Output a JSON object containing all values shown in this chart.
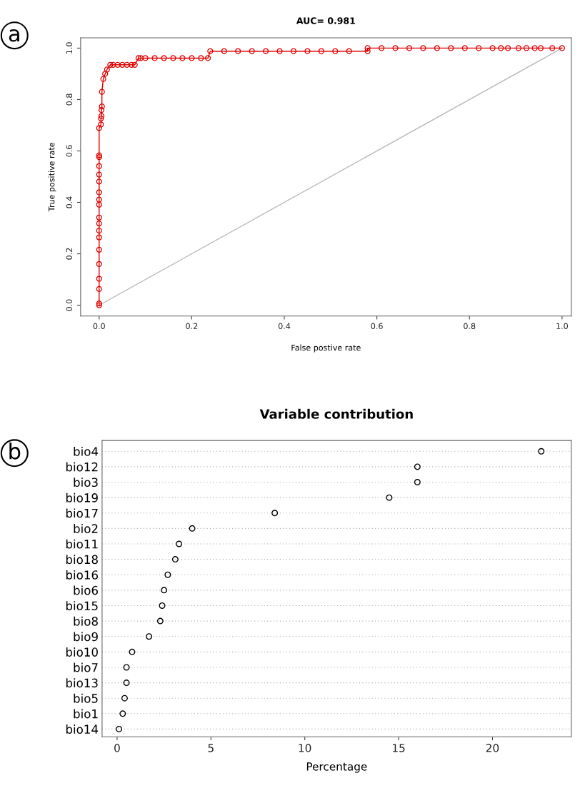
{
  "chart_data": [
    {
      "type": "line",
      "title": "AUC= 0.981",
      "xlabel": "False postive rate",
      "ylabel": "True positive rate",
      "annotations": [
        "a"
      ],
      "xlim": [
        -0.04,
        1.02
      ],
      "ylim": [
        -0.042,
        1.04
      ],
      "xticks": [
        {
          "value": 0,
          "label": "0.0"
        },
        {
          "value": 0.2,
          "label": "0.2"
        },
        {
          "value": 0.4,
          "label": "0.4"
        },
        {
          "value": 0.6,
          "label": "0.6"
        },
        {
          "value": 0.8,
          "label": "0.8"
        },
        {
          "value": 1,
          "label": "1.0"
        }
      ],
      "yticks": [
        {
          "value": 0,
          "label": "0.0"
        },
        {
          "value": 0.2,
          "label": "0.2"
        },
        {
          "value": 0.4,
          "label": "0.4"
        },
        {
          "value": 0.6,
          "label": "0.6"
        },
        {
          "value": 0.8,
          "label": "0.8"
        },
        {
          "value": 1,
          "label": "1.0"
        }
      ],
      "grid": false,
      "series": [
        {
          "type": "line",
          "color": "#bbbbbb",
          "marker": "none",
          "x": [
            0,
            1
          ],
          "values": [
            0,
            1
          ]
        },
        {
          "type": "line",
          "color": "#e00000",
          "marker": "circle",
          "x": [
            0,
            0,
            0,
            0,
            0,
            0,
            0,
            0,
            0,
            0,
            0,
            0,
            0,
            0,
            0,
            0,
            0,
            0,
            0,
            0.004,
            0.004,
            0.005,
            0.005,
            0.006,
            0.006,
            0.009,
            0.013,
            0.017,
            0.024,
            0.03,
            0.04,
            0.05,
            0.06,
            0.07,
            0.077,
            0.085,
            0.09,
            0.1,
            0.12,
            0.14,
            0.16,
            0.18,
            0.2,
            0.22,
            0.235,
            0.24,
            0.27,
            0.3,
            0.33,
            0.36,
            0.39,
            0.42,
            0.45,
            0.48,
            0.51,
            0.54,
            0.58,
            0.58,
            0.61,
            0.64,
            0.67,
            0.7,
            0.73,
            0.76,
            0.79,
            0.82,
            0.85,
            0.868,
            0.883,
            0.906,
            0.923,
            0.941,
            0.954,
            0.979,
            1
          ],
          "values": [
            0,
            0.007,
            0.063,
            0.103,
            0.16,
            0.216,
            0.264,
            0.29,
            0.318,
            0.341,
            0.391,
            0.411,
            0.439,
            0.481,
            0.508,
            0.541,
            0.576,
            0.583,
            0.689,
            0.703,
            0.726,
            0.736,
            0.759,
            0.773,
            0.83,
            0.88,
            0.9,
            0.917,
            0.935,
            0.935,
            0.935,
            0.935,
            0.935,
            0.935,
            0.935,
            0.961,
            0.961,
            0.961,
            0.961,
            0.961,
            0.961,
            0.961,
            0.961,
            0.961,
            0.961,
            0.988,
            0.988,
            0.988,
            0.988,
            0.988,
            0.988,
            0.988,
            0.988,
            0.988,
            0.988,
            0.988,
            0.988,
            1,
            1,
            1,
            1,
            1,
            1,
            1,
            1,
            1,
            1,
            1,
            1,
            1,
            1,
            1,
            1,
            1,
            1
          ]
        }
      ]
    },
    {
      "type": "scatter",
      "orientation": "horizontal",
      "title": "Variable contribution",
      "xlabel": "Percentage",
      "annotations": [
        "b"
      ],
      "categories": [
        "bio4",
        "bio12",
        "bio3",
        "bio19",
        "bio17",
        "bio2",
        "bio11",
        "bio18",
        "bio16",
        "bio6",
        "bio15",
        "bio8",
        "bio9",
        "bio10",
        "bio7",
        "bio13",
        "bio5",
        "bio1",
        "bio14"
      ],
      "values": [
        22.6,
        16.0,
        16.0,
        14.5,
        8.4,
        4.0,
        3.3,
        3.1,
        2.7,
        2.5,
        2.4,
        2.3,
        1.7,
        0.8,
        0.5,
        0.5,
        0.4,
        0.3,
        0.1
      ],
      "color": "#000000",
      "marker": "circle",
      "xlim": [
        -0.8,
        24.2
      ],
      "xticks": [
        0,
        5,
        10,
        15,
        20
      ],
      "grid": "y"
    }
  ]
}
